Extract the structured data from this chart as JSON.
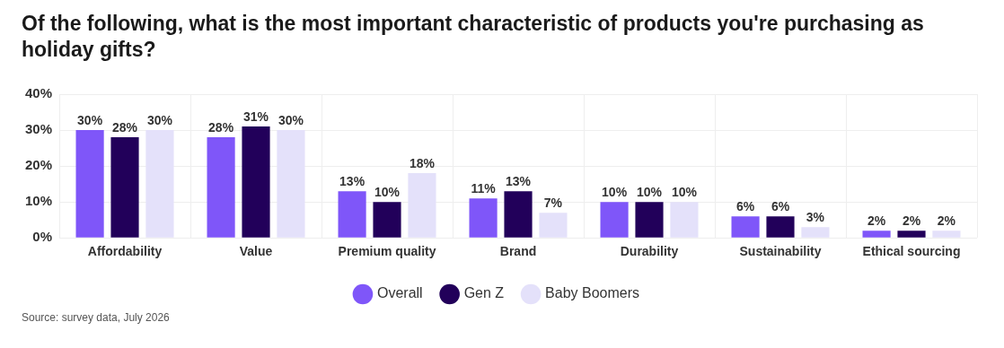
{
  "chart_data": {
    "type": "bar",
    "title": "Of the following, what is the most important characteristic of products you're purchasing as holiday gifts?",
    "categories": [
      "Affordability",
      "Value",
      "Premium quality",
      "Brand",
      "Durability",
      "Sustainability",
      "Ethical sourcing"
    ],
    "series": [
      {
        "name": "Overall",
        "color": "#7f56f9",
        "values": [
          30,
          28,
          13,
          11,
          10,
          6,
          2
        ],
        "value_labels": [
          "30%",
          "28%",
          "13%",
          "11%",
          "10%",
          "6%",
          "2%"
        ]
      },
      {
        "name": "Gen Z",
        "color": "#22005a",
        "values": [
          28,
          31,
          10,
          13,
          10,
          6,
          2
        ],
        "value_labels": [
          "28%",
          "31%",
          "10%",
          "13%",
          "10%",
          "6%",
          "2%"
        ]
      },
      {
        "name": "Baby Boomers",
        "color": "#e4e1fa",
        "values": [
          30,
          30,
          18,
          7,
          10,
          3,
          2
        ],
        "value_labels": [
          "30%",
          "30%",
          "18%",
          "7%",
          "10%",
          "3%",
          "2%"
        ]
      }
    ],
    "ylim": [
      0,
      40
    ],
    "yticks": [
      {
        "value": 0,
        "label": "0%"
      },
      {
        "value": 10,
        "label": "10%"
      },
      {
        "value": 20,
        "label": "20%"
      },
      {
        "value": 30,
        "label": "30%"
      },
      {
        "value": 40,
        "label": "40%"
      }
    ],
    "grid": true,
    "legend": "bottom",
    "annotations": [
      "Source: survey data, July 2026"
    ]
  }
}
